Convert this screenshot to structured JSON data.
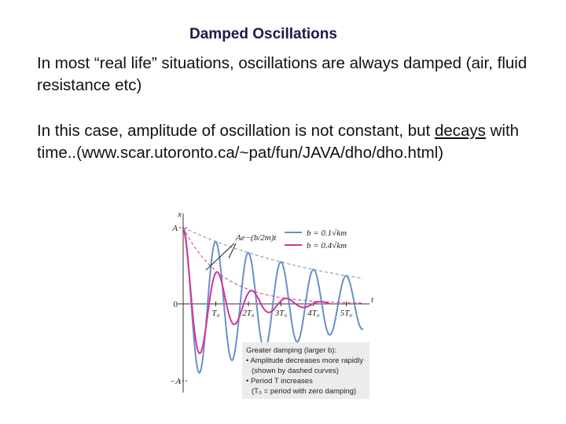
{
  "title": "Damped Oscillations",
  "paragraph1": "In most “real life” situations, oscillations are always damped (air, fluid resistance etc)",
  "paragraph2": {
    "before": "In this case, amplitude of oscillation is not constant, but",
    "emphasis": "decays",
    "after": "with time..(www.scar.utoronto.ca/~pat/fun/JAVA/dho/dho.html)"
  },
  "figure": {
    "axis_labels": {
      "x": "x",
      "t": "t",
      "top": "A",
      "zero": "0",
      "bottom": "−A"
    },
    "time_ticks": [
      "T₀",
      "2T₀",
      "3T₀",
      "4T₀",
      "5T₀"
    ],
    "legend": [
      "b = 0.1√km",
      "b = 0.4√km"
    ],
    "annotation": "Ae−(b/2m)t",
    "note": [
      "Greater damping (larger b):",
      "• Amplitude decreases more rapidly",
      "(shown by dashed curves)",
      "• Period T increases",
      "(T₀ = period with zero damping)"
    ]
  }
}
